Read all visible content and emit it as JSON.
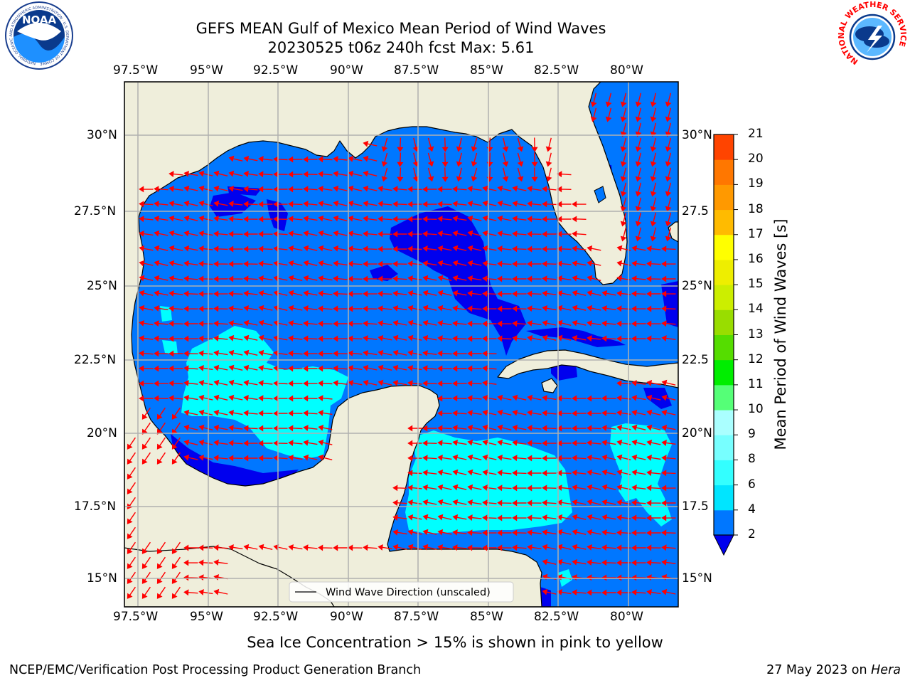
{
  "title_line1": "GEFS MEAN Gulf of Mexico Mean Period of Wind Waves",
  "title_line2": "20230525 t06z 240h fcst   Max: 5.61",
  "lon_labels": [
    "97.5°W",
    "95°W",
    "92.5°W",
    "90°W",
    "87.5°W",
    "85°W",
    "82.5°W",
    "80°W"
  ],
  "lat_labels_left": [
    "30°N",
    "27.5°N",
    "25°N",
    "22.5°N",
    "20°N",
    "17.5°N",
    "15°N"
  ],
  "lat_labels_right": [
    "30°N",
    "27.5",
    "25°N",
    "22.5",
    "20°N",
    "17.5",
    "15°N"
  ],
  "legend_label": "Wind Wave Direction (unscaled)",
  "colorbar": {
    "label": "Mean Period of Wind Waves [s]",
    "ticks": [
      "2",
      "4",
      "6",
      "8",
      "9",
      "10",
      "11",
      "12",
      "13",
      "14",
      "15",
      "16",
      "17",
      "18",
      "19",
      "20",
      "21"
    ],
    "colors": [
      "#0077ff",
      "#00e5ff",
      "#33ffff",
      "#77ffff",
      "#aaffff",
      "#55ff77",
      "#00ee00",
      "#55dd00",
      "#99dd00",
      "#ccee00",
      "#eeee00",
      "#ffff00",
      "#ffbb00",
      "#ff9900",
      "#ff7700",
      "#ff4400",
      "#ff0000"
    ],
    "extend_color": "#0000ee"
  },
  "map_colors": {
    "land": "#efeedb",
    "sea_2_4": "#0077ff",
    "sea_below_2": "#0000ee",
    "sea_4_6": "#00ffff",
    "arrow": "#ff0000",
    "grid": "#b0b0b0"
  },
  "caption": "Sea Ice Concentration > 15% is shown in pink to yellow",
  "footer_left": "NCEP/EMC/Verification Post Processing Product Generation Branch",
  "footer_right_date": "27 May 2023 on ",
  "footer_right_host": "Hera",
  "logos": {
    "left": "NOAA",
    "left_ring": "NATIONAL OCEANIC AND ATMOSPHERIC ADMINISTRATION · U.S. DEPARTMENT OF COMMERCE",
    "right_ring": "NATIONAL WEATHER SERVICE"
  }
}
